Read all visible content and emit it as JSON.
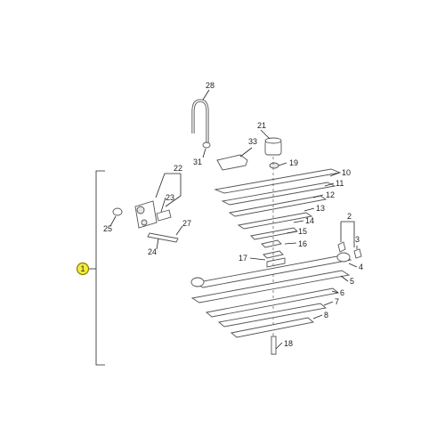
{
  "diagram": {
    "callouts": [
      "28",
      "33",
      "21",
      "31",
      "19",
      "10",
      "11",
      "22",
      "12",
      "13",
      "23",
      "25",
      "14",
      "27",
      "15",
      "16",
      "24",
      "2",
      "3",
      "17",
      "4",
      "5",
      "6",
      "7",
      "8",
      "18"
    ],
    "group_callout": "1",
    "colors": {
      "highlight": "#f5ec3b",
      "highlight_stroke": "#8a7d00",
      "line": "#222222",
      "part_stroke": "#555555"
    }
  }
}
